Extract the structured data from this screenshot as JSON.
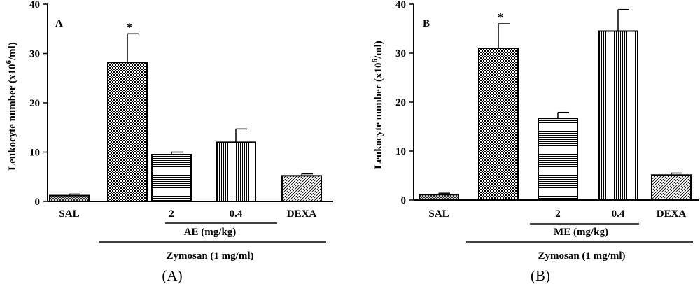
{
  "chart_data": [
    {
      "type": "bar",
      "panel_label": "A",
      "caption": "(A)",
      "ylabel": "Leukocyte number (x10",
      "ylabel_sup": "6",
      "ylabel_end": "/ml)",
      "ylim": [
        0,
        40
      ],
      "yticks": [
        "0",
        "10",
        "20",
        "30",
        "40"
      ],
      "categories": [
        "SAL",
        "",
        "2",
        "0.4",
        "DEXA"
      ],
      "values": [
        1.2,
        28.2,
        9.5,
        12.0,
        5.2
      ],
      "errors": [
        0.3,
        5.8,
        0.5,
        2.7,
        0.4
      ],
      "patterns": [
        "crosshatch",
        "check",
        "hlines",
        "vlines",
        "diag"
      ],
      "significance": [
        "",
        "*",
        "",
        "",
        ""
      ],
      "treatment_group": "AE (mg/kg)",
      "stimulus_group": "Zymosan (1 mg/ml)"
    },
    {
      "type": "bar",
      "panel_label": "B",
      "caption": "(B)",
      "ylabel": "Leukocyte number (x10",
      "ylabel_sup": "6",
      "ylabel_end": "/ml)",
      "ylim": [
        0,
        40
      ],
      "yticks": [
        "0",
        "10",
        "20",
        "30",
        "40"
      ],
      "categories": [
        "SAL",
        "",
        "2",
        "0.4",
        "DEXA"
      ],
      "values": [
        1.1,
        31.0,
        16.7,
        34.5,
        5.1
      ],
      "errors": [
        0.3,
        5.0,
        1.2,
        4.4,
        0.4
      ],
      "patterns": [
        "crosshatch",
        "check",
        "hlines",
        "vlines",
        "diag"
      ],
      "significance": [
        "",
        "*",
        "",
        "",
        ""
      ],
      "treatment_group": "ME (mg/kg)",
      "stimulus_group": "Zymosan (1 mg/ml)"
    }
  ]
}
